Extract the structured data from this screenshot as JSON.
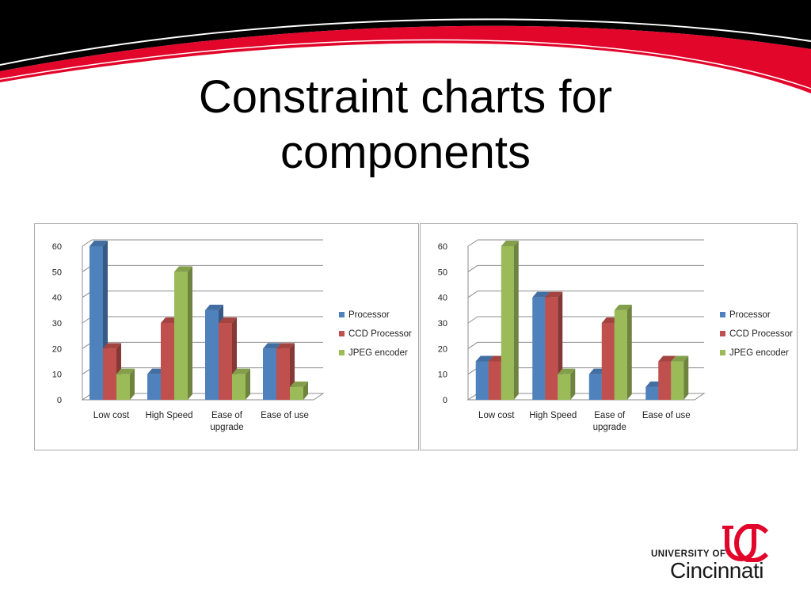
{
  "slide": {
    "title_lines": [
      "Constraint charts for",
      "components"
    ]
  },
  "colors": {
    "header_black": "#000000",
    "header_red": "#e2062b",
    "series": [
      "#4f81bd",
      "#c0504d",
      "#9bbb59"
    ],
    "logo_red": "#e2062b"
  },
  "logo": {
    "line1": "UNIVERSITY OF",
    "line2": "Cincinnati"
  },
  "chart_data": [
    {
      "type": "bar",
      "categories": [
        [
          "Low cost"
        ],
        [
          "High Speed"
        ],
        [
          "Ease of",
          "upgrade"
        ],
        [
          "Ease of use"
        ]
      ],
      "series": [
        {
          "name": "Processor",
          "values": [
            60,
            10,
            35,
            20
          ]
        },
        {
          "name": "CCD Processor",
          "values": [
            20,
            30,
            30,
            20
          ]
        },
        {
          "name": "JPEG encoder",
          "values": [
            10,
            50,
            10,
            5
          ]
        }
      ],
      "ylim": [
        0,
        60
      ],
      "yticks": [
        0,
        10,
        20,
        30,
        40,
        50,
        60
      ],
      "grid": true,
      "legend": "right",
      "style": "3d-clustered-column"
    },
    {
      "type": "bar",
      "categories": [
        [
          "Low cost"
        ],
        [
          "High Speed"
        ],
        [
          "Ease of",
          "upgrade"
        ],
        [
          "Ease of use"
        ]
      ],
      "series": [
        {
          "name": "Processor",
          "values": [
            15,
            40,
            10,
            5
          ]
        },
        {
          "name": "CCD Processor",
          "values": [
            15,
            40,
            30,
            15
          ]
        },
        {
          "name": "JPEG encoder",
          "values": [
            60,
            10,
            35,
            15
          ]
        }
      ],
      "ylim": [
        0,
        60
      ],
      "yticks": [
        0,
        10,
        20,
        30,
        40,
        50,
        60
      ],
      "grid": true,
      "legend": "right",
      "style": "3d-clustered-column"
    }
  ]
}
